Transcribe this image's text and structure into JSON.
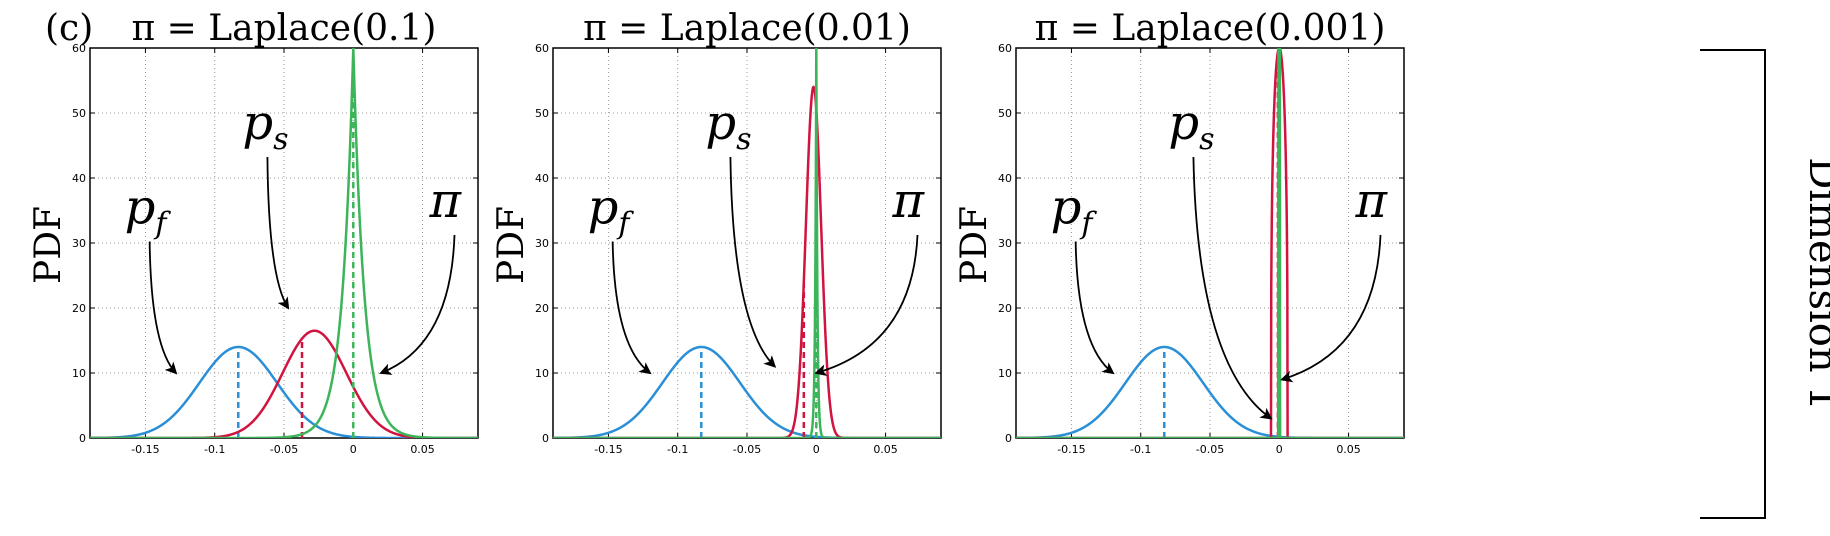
{
  "panel_tag": "(c)",
  "side_label": "Dimension 1",
  "colors": {
    "p_f": "#2a8fd6",
    "p_s": "#d1143f",
    "pi": "#3cb55a"
  },
  "chart_data": [
    {
      "type": "line",
      "title": "π = Laplace(0.1)",
      "ylabel": "PDF",
      "xlim": [
        -0.19,
        0.09
      ],
      "ylim": [
        0,
        60
      ],
      "xticks": [
        -0.15,
        -0.1,
        -0.05,
        0,
        0.05
      ],
      "xtick_labels": [
        "-0.15",
        "-0.1",
        "-0.05",
        "0",
        "0.05"
      ],
      "yticks": [
        0,
        10,
        20,
        30,
        40,
        50,
        60
      ],
      "ytick_labels": [
        "0",
        "10",
        "20",
        "30",
        "40",
        "50",
        "60"
      ],
      "grid": true,
      "series": [
        {
          "key": "p_f",
          "name": "p_f",
          "kind": "gaussian",
          "mean": -0.083,
          "peak": 14,
          "sd": 0.028,
          "mean_line": -0.083
        },
        {
          "key": "p_s",
          "name": "p_s",
          "kind": "gaussian",
          "mean": -0.028,
          "peak": 16.5,
          "sd": 0.023,
          "mean_line": -0.037
        },
        {
          "key": "pi",
          "name": "π",
          "kind": "laplace",
          "mean": 0,
          "peak": 60,
          "scale": 0.008,
          "mean_line": 0
        }
      ],
      "annotations": [
        {
          "main": "p",
          "sub": "f",
          "tx": -0.165,
          "ty": 33,
          "ax": -0.128,
          "ay": 10
        },
        {
          "main": "p",
          "sub": "s",
          "tx": -0.08,
          "ty": 46,
          "ax": -0.047,
          "ay": 20
        },
        {
          "main": "π",
          "sub": "",
          "tx": 0.055,
          "ty": 34,
          "ax": 0.02,
          "ay": 10
        }
      ]
    },
    {
      "type": "line",
      "title": "π = Laplace(0.01)",
      "ylabel": "PDF",
      "xlim": [
        -0.19,
        0.09
      ],
      "ylim": [
        0,
        60
      ],
      "xticks": [
        -0.15,
        -0.1,
        -0.05,
        0,
        0.05
      ],
      "xtick_labels": [
        "-0.15",
        "-0.1",
        "-0.05",
        "0",
        "0.05"
      ],
      "yticks": [
        0,
        10,
        20,
        30,
        40,
        50,
        60
      ],
      "ytick_labels": [
        "0",
        "10",
        "20",
        "30",
        "40",
        "50",
        "60"
      ],
      "grid": true,
      "series": [
        {
          "key": "p_f",
          "name": "p_f",
          "kind": "gaussian",
          "mean": -0.083,
          "peak": 14,
          "sd": 0.028,
          "mean_line": -0.083
        },
        {
          "key": "p_s",
          "name": "p_s",
          "kind": "gaussian",
          "mean": -0.002,
          "peak": 54,
          "sd": 0.0055,
          "mean_line": -0.009
        },
        {
          "key": "pi",
          "name": "π",
          "kind": "laplace",
          "mean": 0,
          "peak": 60,
          "scale": 0.0008,
          "mean_line": 0
        }
      ],
      "annotations": [
        {
          "main": "p",
          "sub": "f",
          "tx": -0.165,
          "ty": 33,
          "ax": -0.12,
          "ay": 10
        },
        {
          "main": "p",
          "sub": "s",
          "tx": -0.08,
          "ty": 46,
          "ax": -0.03,
          "ay": 11
        },
        {
          "main": "π",
          "sub": "",
          "tx": 0.055,
          "ty": 34,
          "ax": 0,
          "ay": 10
        }
      ]
    },
    {
      "type": "line",
      "title": "π = Laplace(0.001)",
      "ylabel": "PDF",
      "xlim": [
        -0.19,
        0.09
      ],
      "ylim": [
        0,
        60
      ],
      "xticks": [
        -0.15,
        -0.1,
        -0.05,
        0,
        0.05
      ],
      "xtick_labels": [
        "-0.15",
        "-0.1",
        "-0.05",
        "0",
        "0.05"
      ],
      "yticks": [
        0,
        10,
        20,
        30,
        40,
        50,
        60
      ],
      "ytick_labels": [
        "0",
        "10",
        "20",
        "30",
        "40",
        "50",
        "60"
      ],
      "grid": true,
      "series": [
        {
          "key": "p_f",
          "name": "p_f",
          "kind": "gaussian",
          "mean": -0.083,
          "peak": 14,
          "sd": 0.028,
          "mean_line": -0.083
        },
        {
          "key": "p_s",
          "name": "p_s",
          "kind": "narrow",
          "mean": 0.0,
          "peak": 60,
          "halfwidth": 0.006,
          "mean_line": -0.001
        },
        {
          "key": "pi",
          "name": "π",
          "kind": "spike",
          "mean": 0,
          "peak": 60,
          "mean_line": 0
        }
      ],
      "annotations": [
        {
          "main": "p",
          "sub": "f",
          "tx": -0.165,
          "ty": 33,
          "ax": -0.12,
          "ay": 10
        },
        {
          "main": "p",
          "sub": "s",
          "tx": -0.08,
          "ty": 46,
          "ax": -0.006,
          "ay": 3
        },
        {
          "main": "π",
          "sub": "",
          "tx": 0.055,
          "ty": 34,
          "ax": 0.002,
          "ay": 9
        }
      ]
    }
  ]
}
